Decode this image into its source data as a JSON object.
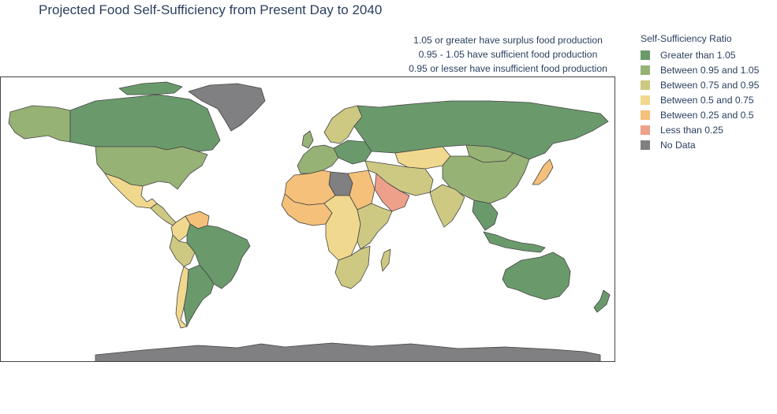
{
  "title": "Projected Food Self-Sufficiency from Present Day to 2040",
  "annotation_lines": [
    "1.05 or greater have surplus food production",
    "0.95 - 1.05 have sufficient food production",
    "0.95 or lesser have insufficient food production"
  ],
  "legend": {
    "title": "Self-Sufficiency Ratio",
    "items": [
      {
        "label": "Greater than 1.05",
        "color": "#6a9a6c"
      },
      {
        "label": "Between 0.95 and 1.05",
        "color": "#97b275"
      },
      {
        "label": "Between 0.75 and 0.95",
        "color": "#cdc982"
      },
      {
        "label": "Between 0.5 and 0.75",
        "color": "#f1d88f"
      },
      {
        "label": "Between 0.25 and 0.5",
        "color": "#f4c07a"
      },
      {
        "label": "Less than 0.25",
        "color": "#eda08a"
      },
      {
        "label": "No Data",
        "color": "#808083"
      }
    ]
  },
  "regions": [
    {
      "name": "Canada",
      "category": "Greater than 1.05"
    },
    {
      "name": "United States",
      "category": "Between 0.95 and 1.05"
    },
    {
      "name": "Alaska",
      "category": "Between 0.95 and 1.05"
    },
    {
      "name": "Greenland",
      "category": "No Data"
    },
    {
      "name": "Mexico",
      "category": "Between 0.5 and 0.75"
    },
    {
      "name": "Central America",
      "category": "Between 0.75 and 0.95"
    },
    {
      "name": "Venezuela",
      "category": "Between 0.25 and 0.5"
    },
    {
      "name": "Colombia",
      "category": "Between 0.5 and 0.75"
    },
    {
      "name": "Brazil",
      "category": "Greater than 1.05"
    },
    {
      "name": "Peru",
      "category": "Between 0.75 and 0.95"
    },
    {
      "name": "Argentina",
      "category": "Greater than 1.05"
    },
    {
      "name": "Chile",
      "category": "Between 0.5 and 0.75"
    },
    {
      "name": "Russia",
      "category": "Greater than 1.05"
    },
    {
      "name": "Scandinavia",
      "category": "Between 0.75 and 0.95"
    },
    {
      "name": "Western Europe",
      "category": "Between 0.95 and 1.05"
    },
    {
      "name": "Eastern Europe",
      "category": "Greater than 1.05"
    },
    {
      "name": "Kazakhstan",
      "category": "Between 0.5 and 0.75"
    },
    {
      "name": "China",
      "category": "Between 0.95 and 1.05"
    },
    {
      "name": "Mongolia",
      "category": "Between 0.95 and 1.05"
    },
    {
      "name": "India",
      "category": "Between 0.75 and 0.95"
    },
    {
      "name": "Middle East",
      "category": "Between 0.75 and 0.95"
    },
    {
      "name": "Saudi Arabia",
      "category": "Less than 0.25"
    },
    {
      "name": "Libya",
      "category": "No Data"
    },
    {
      "name": "North Africa",
      "category": "Between 0.25 and 0.5"
    },
    {
      "name": "West Africa",
      "category": "Between 0.25 and 0.5"
    },
    {
      "name": "Central Africa",
      "category": "Between 0.5 and 0.75"
    },
    {
      "name": "East Africa",
      "category": "Between 0.75 and 0.95"
    },
    {
      "name": "Southern Africa",
      "category": "Between 0.75 and 0.95"
    },
    {
      "name": "Southeast Asia",
      "category": "Greater than 1.05"
    },
    {
      "name": "Japan",
      "category": "Between 0.25 and 0.5"
    },
    {
      "name": "Indonesia",
      "category": "Greater than 1.05"
    },
    {
      "name": "Australia",
      "category": "Greater than 1.05"
    },
    {
      "name": "New Zealand",
      "category": "Greater than 1.05"
    },
    {
      "name": "Antarctica",
      "category": "No Data"
    }
  ]
}
